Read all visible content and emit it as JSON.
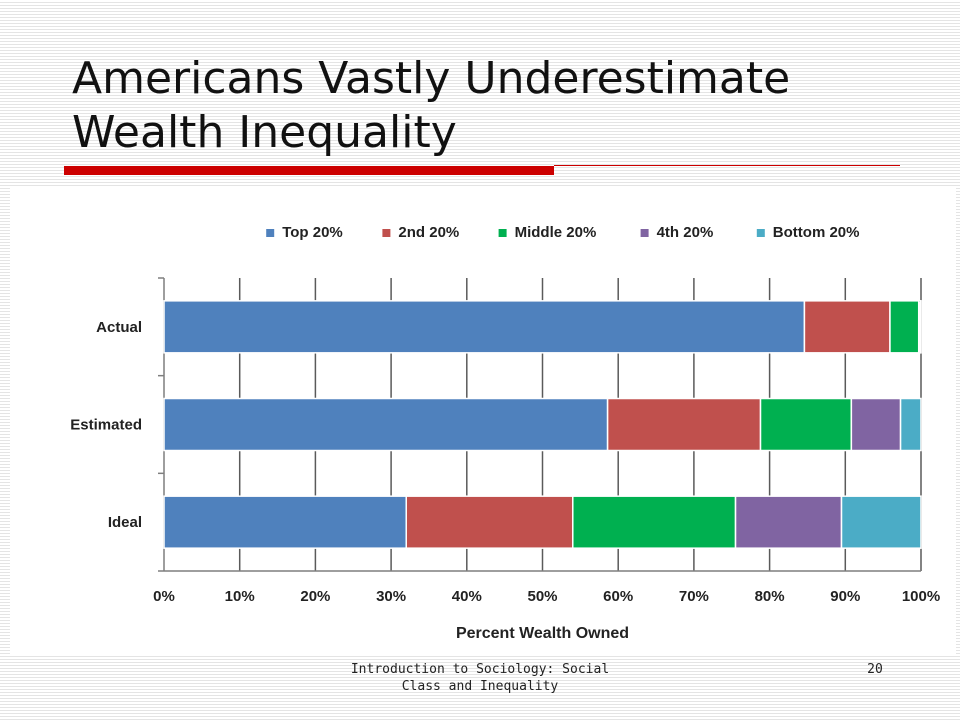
{
  "slide": {
    "title": "Americans Vastly Underestimate Wealth Inequality",
    "footer": "Introduction to Sociology: Social Class and Inequality",
    "page_number": "20",
    "accent_color": "#cc0000"
  },
  "chart_data": {
    "type": "bar",
    "orientation": "horizontal",
    "stacked": true,
    "title": "",
    "xlabel": "Percent Wealth Owned",
    "ylabel": "",
    "xlim": [
      0,
      100
    ],
    "xticks": [
      "0%",
      "10%",
      "20%",
      "30%",
      "40%",
      "50%",
      "60%",
      "70%",
      "80%",
      "90%",
      "100%"
    ],
    "grid": "vertical",
    "legend_position": "top",
    "categories": [
      "Actual",
      "Estimated",
      "Ideal"
    ],
    "series": [
      {
        "name": "Top 20%",
        "color": "#4f81bd",
        "values": [
          84.6,
          58.6,
          32.0
        ]
      },
      {
        "name": "2nd 20%",
        "color": "#c0504d",
        "values": [
          11.3,
          20.2,
          22.0
        ]
      },
      {
        "name": "Middle 20%",
        "color": "#00b050",
        "values": [
          3.8,
          12.0,
          21.5
        ]
      },
      {
        "name": "4th 20%",
        "color": "#8064a2",
        "values": [
          0.2,
          6.5,
          14.0
        ]
      },
      {
        "name": "Bottom 20%",
        "color": "#4bacc6",
        "values": [
          0.1,
          2.7,
          10.5
        ]
      }
    ]
  }
}
